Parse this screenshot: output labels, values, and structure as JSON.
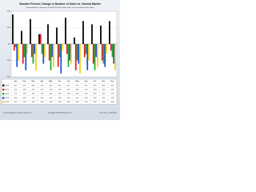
{
  "chart_data": {
    "type": "bar",
    "title": "Boulder Percent Change in Number of Sales vs. Normal Market",
    "subtitle": "\"Normal Market\" is Average of 2004-2015 MLS Sales Data; One-Day Interval data values",
    "categories": [
      "Jan",
      "Feb",
      "Mar",
      "Apr",
      "May",
      "Jun",
      "Jul",
      "Aug",
      "Sep",
      "Oct",
      "Nov",
      "Dec"
    ],
    "series": [
      {
        "name": "2016",
        "color": "#000000",
        "values": [
          45,
          20,
          38,
          15,
          30,
          25,
          40,
          10,
          35,
          30,
          28,
          35
        ],
        "value_labels": [
          "45%",
          "20%",
          "38%",
          "15%",
          "30%",
          "25%",
          "40%",
          "10%",
          "35%",
          "30%",
          "28%",
          "35%"
        ]
      },
      {
        "name": "2017",
        "color": "#e0201b",
        "values": [
          -10,
          -30,
          -20,
          15,
          -25,
          -35,
          -15,
          -40,
          -20,
          -30,
          -25,
          -10
        ],
        "value_labels": [
          "-10%",
          "-30%",
          "-20%",
          "15%",
          "-25%",
          "-35%",
          "-15%",
          "-40%",
          "-20%",
          "-30%",
          "-25%",
          "-10%"
        ]
      },
      {
        "name": "2018",
        "color": "#1fa82c",
        "values": [
          -5,
          -20,
          -30,
          -15,
          -40,
          -20,
          -35,
          -25,
          -15,
          -40,
          -30,
          -20
        ],
        "value_labels": [
          "-5%",
          "-20%",
          "-30%",
          "-15%",
          "-40%",
          "-20%",
          "-35%",
          "-25%",
          "-15%",
          "-40%",
          "-30%",
          "-20%"
        ]
      },
      {
        "name": "2019",
        "color": "#1f4fd8",
        "values": [
          -35,
          -40,
          -15,
          -30,
          -20,
          -45,
          -25,
          -30,
          -40,
          -20,
          -35,
          -30
        ],
        "value_labels": [
          "-35%",
          "-40%",
          "-15%",
          "-30%",
          "-20%",
          "-45%",
          "-25%",
          "-30%",
          "-40%",
          "-20%",
          "-35%",
          "-30%"
        ]
      },
      {
        "name": "2020",
        "color": "#f2d21b",
        "values": [
          -25,
          -15,
          -40,
          -20,
          -35,
          -10,
          -30,
          -45,
          -25,
          -35,
          -15,
          -40
        ],
        "value_labels": [
          "-25%",
          "-15%",
          "-40%",
          "-20%",
          "-35%",
          "-10%",
          "-30%",
          "-45%",
          "-25%",
          "-35%",
          "-15%",
          "-40%"
        ]
      }
    ],
    "ylim": [
      -50,
      50
    ],
    "yticks": [
      {
        "value": -50,
        "label": "-50%"
      },
      {
        "value": -25,
        "label": "-25%"
      },
      {
        "value": 0,
        "label": "0%"
      },
      {
        "value": 25,
        "label": "25%"
      },
      {
        "value": 50,
        "label": "50%"
      }
    ],
    "grid": true,
    "footer_left": "Created by Agents for Home Buyers LLC",
    "footer_center": "www.AgentsForHomeBuyers.com",
    "footer_right": "Data Source: IRES MLS"
  }
}
